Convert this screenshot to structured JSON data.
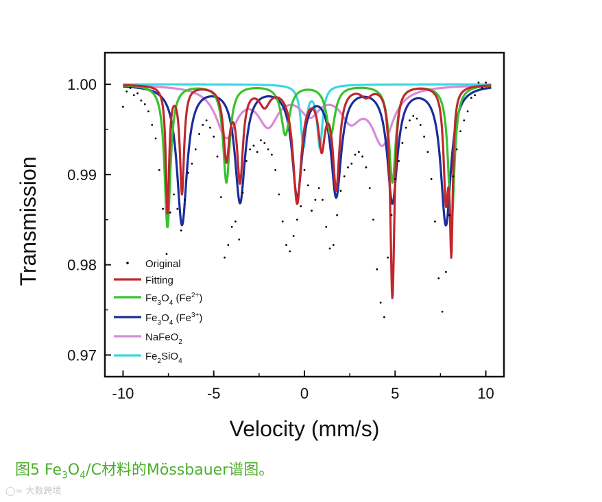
{
  "chart_data": {
    "type": "line",
    "xlabel": "Velocity (mm/s)",
    "ylabel": "Transmission",
    "xlim": [
      -11,
      11
    ],
    "ylim": [
      0.9676,
      1.0035
    ],
    "xticks": [
      -10,
      -5,
      0,
      5,
      10
    ],
    "xtick_labels": [
      "-10",
      "-5",
      "0",
      "5",
      "10"
    ],
    "yticks": [
      0.97,
      0.98,
      0.99,
      1.0
    ],
    "ytick_labels": [
      "0.97",
      "0.98",
      "0.99",
      "1.00"
    ],
    "legend_position": "bottom-left",
    "series": [
      {
        "name": "Original",
        "label_main": "Original",
        "color": "#000000",
        "style": "points",
        "x": [
          -10,
          -9.8,
          -9.6,
          -9.4,
          -9.2,
          -9,
          -8.8,
          -8.6,
          -8.4,
          -8.2,
          -8,
          -7.8,
          -7.6,
          -7.4,
          -7.2,
          -7,
          -6.8,
          -6.6,
          -6.4,
          -6.2,
          -6,
          -5.8,
          -5.6,
          -5.4,
          -5.2,
          -5,
          -4.8,
          -4.6,
          -4.4,
          -4.2,
          -4,
          -3.8,
          -3.6,
          -3.4,
          -3.2,
          -3,
          -2.8,
          -2.6,
          -2.4,
          -2.2,
          -2,
          -1.8,
          -1.6,
          -1.4,
          -1.2,
          -1,
          -0.8,
          -0.6,
          -0.4,
          -0.2,
          0,
          0.2,
          0.4,
          0.6,
          0.8,
          1,
          1.2,
          1.4,
          1.6,
          1.8,
          2,
          2.2,
          2.4,
          2.6,
          2.8,
          3,
          3.2,
          3.4,
          3.6,
          3.8,
          4,
          4.2,
          4.4,
          4.6,
          4.8,
          5,
          5.2,
          5.4,
          5.6,
          5.8,
          6,
          6.2,
          6.4,
          6.6,
          6.8,
          7,
          7.2,
          7.4,
          7.6,
          7.8,
          8,
          8.2,
          8.4,
          8.6,
          8.8,
          9,
          9.2,
          9.4,
          9.6,
          9.8,
          10
        ],
        "y": [
          0.9975,
          0.9992,
          0.9996,
          0.9988,
          0.999,
          0.9982,
          0.9978,
          0.997,
          0.9955,
          0.994,
          0.9905,
          0.9862,
          0.9812,
          0.9858,
          0.9878,
          0.9862,
          0.9838,
          0.9872,
          0.9902,
          0.9912,
          0.9928,
          0.9945,
          0.9955,
          0.996,
          0.9952,
          0.9942,
          0.992,
          0.9875,
          0.9808,
          0.9822,
          0.9842,
          0.9848,
          0.9828,
          0.988,
          0.9915,
          0.9928,
          0.9932,
          0.9925,
          0.9938,
          0.9935,
          0.9928,
          0.9922,
          0.9905,
          0.9878,
          0.9848,
          0.9822,
          0.9815,
          0.9832,
          0.985,
          0.9865,
          0.9905,
          0.9888,
          0.986,
          0.9872,
          0.9885,
          0.9872,
          0.9842,
          0.9818,
          0.9822,
          0.9855,
          0.9882,
          0.9898,
          0.9908,
          0.9912,
          0.9922,
          0.9925,
          0.992,
          0.9908,
          0.9885,
          0.985,
          0.9795,
          0.9758,
          0.9742,
          0.9808,
          0.9855,
          0.9895,
          0.9915,
          0.9935,
          0.9952,
          0.996,
          0.9965,
          0.9962,
          0.9955,
          0.9942,
          0.9925,
          0.9895,
          0.9848,
          0.9785,
          0.9748,
          0.9792,
          0.9855,
          0.9898,
          0.9928,
          0.9948,
          0.996,
          0.997,
          0.9985,
          0.9988,
          1.0002,
          0.9996,
          1.0002
        ]
      },
      {
        "name": "Fitting",
        "label_main": "Fitting",
        "color": "#c0282d",
        "style": "curve",
        "baseline": 1.0,
        "components": [
          [
            -7.55,
            0.014,
            0.11
          ],
          [
            -6.75,
            0.0118,
            0.14
          ],
          [
            -4.3,
            0.0078,
            0.2
          ],
          [
            -3.55,
            0.0102,
            0.2
          ],
          [
            -2.2,
            0.002,
            0.35
          ],
          [
            -0.4,
            0.0128,
            0.28
          ],
          [
            0.95,
            0.0062,
            0.22
          ],
          [
            1.75,
            0.011,
            0.22
          ],
          [
            3.4,
            0.001,
            0.35
          ],
          [
            4.85,
            0.0235,
            0.14
          ],
          [
            7.8,
            0.0118,
            0.16
          ],
          [
            8.1,
            0.0165,
            0.1
          ]
        ]
      },
      {
        "name": "Fe3O4 (Fe2+)",
        "label_main": "Fe",
        "label_sub1": "3",
        "label_mid": "O",
        "label_sub2": "4",
        "label_tail": " (Fe",
        "label_sup": "2+",
        "label_end": ")",
        "color": "#39c12e",
        "style": "curve",
        "baseline": 1.0,
        "components": [
          [
            -7.55,
            0.0158,
            0.2
          ],
          [
            -4.3,
            0.0108,
            0.22
          ],
          [
            -1.05,
            0.0055,
            0.28
          ],
          [
            1.45,
            0.0055,
            0.28
          ],
          [
            4.85,
            0.0108,
            0.22
          ],
          [
            8.1,
            0.0158,
            0.2
          ]
        ]
      },
      {
        "name": "Fe3O4 (Fe3+)",
        "label_main": "Fe",
        "label_sub1": "3",
        "label_mid": "O",
        "label_sub2": "4",
        "label_tail": " (Fe",
        "label_sup": "3+",
        "label_end": ")",
        "color": "#1a2d9a",
        "style": "curve",
        "baseline": 1.0,
        "components": [
          [
            -6.75,
            0.0154,
            0.34
          ],
          [
            -3.55,
            0.0128,
            0.34
          ],
          [
            -0.4,
            0.012,
            0.34
          ],
          [
            1.75,
            0.012,
            0.34
          ],
          [
            4.85,
            0.0128,
            0.34
          ],
          [
            7.8,
            0.0154,
            0.34
          ]
        ]
      },
      {
        "name": "NaFeO2",
        "label_main": "NaFeO",
        "label_sub1": "2",
        "color": "#d98ad6",
        "style": "curve",
        "baseline": 1.0,
        "components": [
          [
            -4.3,
            0.0055,
            0.7
          ],
          [
            -2.0,
            0.004,
            0.7
          ],
          [
            0.3,
            0.0028,
            0.7
          ],
          [
            2.55,
            0.0033,
            0.7
          ],
          [
            4.3,
            0.0062,
            0.7
          ]
        ]
      },
      {
        "name": "Fe2SiO4",
        "label_main": "Fe",
        "label_sub1": "2",
        "label_mid": "SiO",
        "label_sub2": "4",
        "color": "#3ad8e0",
        "style": "curve",
        "baseline": 1.0,
        "components": [
          [
            -0.05,
            0.0068,
            0.18
          ],
          [
            0.85,
            0.0068,
            0.18
          ]
        ]
      }
    ]
  },
  "caption": {
    "prefix": "图5 Fe",
    "sub1": "3",
    "mid": "O",
    "sub2": "4",
    "suffix": "/C材料的Mössbauer谱图。"
  },
  "watermark": "大数跨境"
}
